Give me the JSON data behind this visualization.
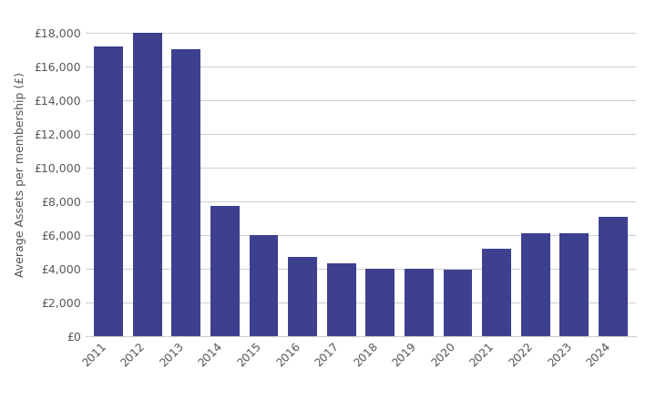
{
  "years": [
    "2011",
    "2012",
    "2013",
    "2014",
    "2015",
    "2016",
    "2017",
    "2018",
    "2019",
    "2020",
    "2021",
    "2022",
    "2023",
    "2024"
  ],
  "values": [
    17200,
    18000,
    17000,
    7700,
    6000,
    4700,
    4300,
    4000,
    4000,
    3950,
    5200,
    6100,
    6100,
    7100
  ],
  "bar_color": "#3d3f8f",
  "ylabel": "Average Assets per membership (£)",
  "ytick_labels": [
    "£0",
    "£2,000",
    "£4,000",
    "£6,000",
    "£8,000",
    "£10,000",
    "£12,000",
    "£14,000",
    "£16,000",
    "£18,000"
  ],
  "ytick_values": [
    0,
    2000,
    4000,
    6000,
    8000,
    10000,
    12000,
    14000,
    16000,
    18000
  ],
  "ylim": [
    0,
    19200
  ],
  "background_color": "#ffffff",
  "grid_color": "#d0d0d0",
  "tick_color": "#555555",
  "label_fontsize": 9,
  "tick_fontsize": 9
}
